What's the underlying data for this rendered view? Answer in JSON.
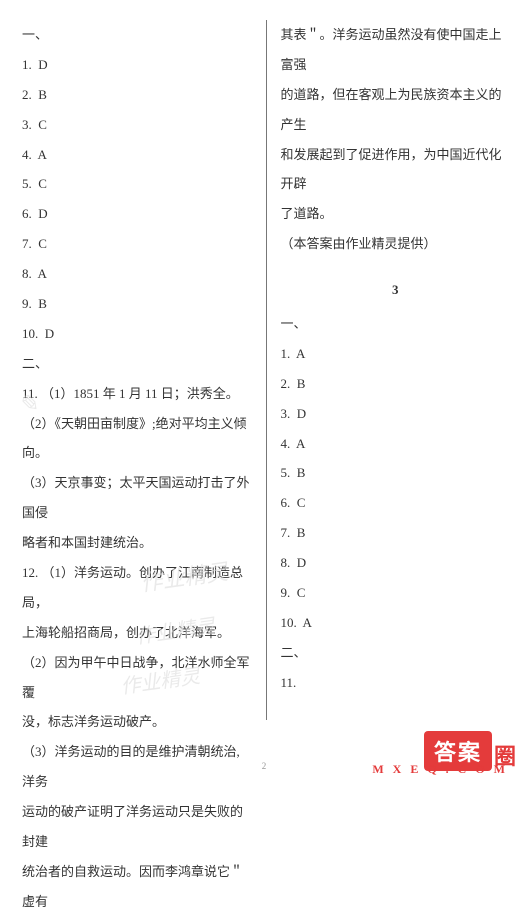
{
  "left": {
    "section_label": "一、",
    "items": [
      "1.  D",
      "2.  B",
      "3.  C",
      "4.  A",
      "5.  C",
      "6.  D",
      "7.  C",
      "8.  A",
      "9.  B",
      "10.  D"
    ],
    "section2_label": "二、",
    "q11": [
      "11. （1）1851 年 1 月 11 日；洪秀全。",
      "（2）《天朝田亩制度》;绝对平均主义倾向。",
      "（3）天京事变；太平天国运动打击了外国侵",
      "略者和本国封建统治。"
    ],
    "q12": [
      "12. （1）洋务运动。创办了江南制造总局，",
      "上海轮船招商局，创办了北洋海军。",
      "（2）因为甲午中日战争，北洋水师全军覆",
      "没，标志洋务运动破产。",
      "（3）洋务运动的目的是维护清朝统治,洋务",
      "运动的破产证明了洋务运动只是失败的封建",
      "统治者的自救运动。因而李鸿章说它＂虚有"
    ]
  },
  "right": {
    "continuation": [
      "其表＂。洋务运动虽然没有使中国走上富强",
      "的道路，但在客观上为民族资本主义的产生",
      "和发展起到了促进作用，为中国近代化开辟",
      "了道路。",
      "（本答案由作业精灵提供）"
    ],
    "section_number": "3",
    "section_label": "一、",
    "items": [
      "1.  A",
      "2.  B",
      "3.  D",
      "4.  A",
      "5.  B",
      "6.  C",
      "7.  B",
      "8.  D",
      "9.  C",
      "10.  A"
    ],
    "section2_label": "二、",
    "q11_label": "11."
  },
  "page_number": "2",
  "watermarks": {
    "wm1": "✎",
    "wm2": "作业精灵",
    "wm3": "作业精灵",
    "wm4": "作业精灵"
  },
  "footer": {
    "logo_main": "答案",
    "logo_tail": "圈",
    "url": "M X E Q . C O M"
  }
}
